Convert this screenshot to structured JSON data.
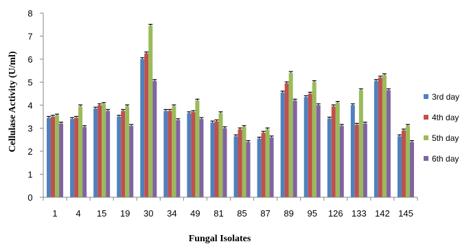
{
  "chart_data": {
    "type": "bar",
    "title": "",
    "xlabel": "Fungal Isolates",
    "ylabel": "Cellulase Activity (U/ml)",
    "ylim": [
      0,
      8
    ],
    "yticks": [
      0,
      1,
      2,
      3,
      4,
      5,
      6,
      7,
      8
    ],
    "grid": false,
    "error_bars": true,
    "legend_position": "right",
    "categories": [
      "1",
      "4",
      "15",
      "19",
      "30",
      "34",
      "49",
      "81",
      "85",
      "87",
      "89",
      "95",
      "126",
      "133",
      "142",
      "145"
    ],
    "series": [
      {
        "name": "3rd day",
        "color": "#4F81BD",
        "values": [
          3.45,
          3.4,
          3.85,
          3.5,
          6.0,
          3.75,
          3.65,
          3.25,
          2.65,
          2.55,
          4.55,
          4.35,
          3.42,
          4.0,
          5.05,
          2.65
        ]
      },
      {
        "name": "4th day",
        "color": "#C0504D",
        "values": [
          3.5,
          3.45,
          4.0,
          3.75,
          6.25,
          3.75,
          3.7,
          3.3,
          2.95,
          2.8,
          4.95,
          4.5,
          3.95,
          3.15,
          5.2,
          2.9
        ]
      },
      {
        "name": "5th day",
        "color": "#9BBB59",
        "values": [
          3.55,
          3.95,
          4.05,
          3.95,
          7.45,
          3.95,
          4.2,
          3.65,
          3.05,
          2.95,
          5.4,
          5.0,
          4.1,
          4.65,
          5.3,
          3.1
        ]
      },
      {
        "name": "6th day",
        "color": "#8064A2",
        "values": [
          3.2,
          3.05,
          3.75,
          3.1,
          5.05,
          3.35,
          3.4,
          3.0,
          2.4,
          2.6,
          4.2,
          4.0,
          3.1,
          3.2,
          4.65,
          2.4
        ]
      }
    ]
  }
}
